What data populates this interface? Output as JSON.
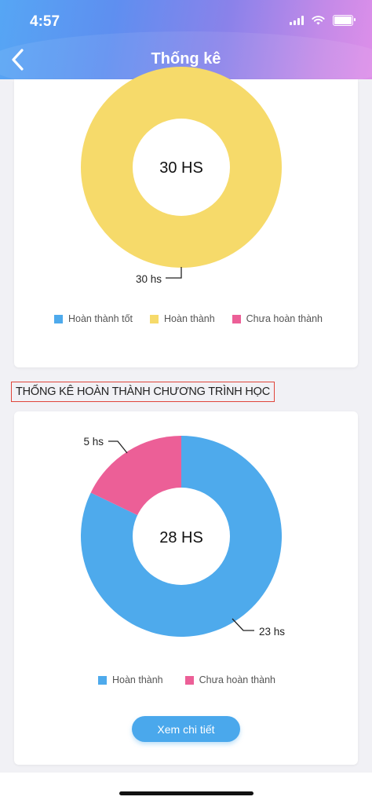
{
  "status_bar": {
    "time": "4:57"
  },
  "header": {
    "title": "Thống kê"
  },
  "section_title": "THỐNG KÊ HOÀN THÀNH CHƯƠNG TRÌNH HỌC",
  "charts": {
    "chart1": {
      "center_label": "30 HS",
      "callout_label": "30 hs"
    },
    "chart2": {
      "center_label": "28 HS",
      "callout_small": "5 hs",
      "callout_large": "23 hs"
    }
  },
  "legend1": [
    "Hoàn thành tốt",
    "Hoàn thành",
    "Chưa hoàn thành"
  ],
  "legend2": [
    "Hoàn thành",
    "Chưa hoàn thành"
  ],
  "detail_button": "Xem chi tiết",
  "colors": {
    "blue": "#4eaaec",
    "yellow": "#f6da6a",
    "pink": "#ec5f97"
  },
  "chart_data": [
    {
      "type": "pie",
      "center_label": "30 HS",
      "categories": [
        "Hoàn thành tốt",
        "Hoàn thành",
        "Chưa hoàn thành"
      ],
      "values": [
        0,
        30,
        0
      ],
      "data_labels": [
        "30 hs"
      ],
      "colors": [
        "#4eaaec",
        "#f6da6a",
        "#ec5f97"
      ],
      "legend_position": "bottom"
    },
    {
      "type": "pie",
      "center_label": "28 HS",
      "categories": [
        "Hoàn thành",
        "Chưa hoàn thành"
      ],
      "values": [
        23,
        5
      ],
      "data_labels": [
        "23 hs",
        "5 hs"
      ],
      "colors": [
        "#4eaaec",
        "#ec5f97"
      ],
      "legend_position": "bottom"
    }
  ]
}
